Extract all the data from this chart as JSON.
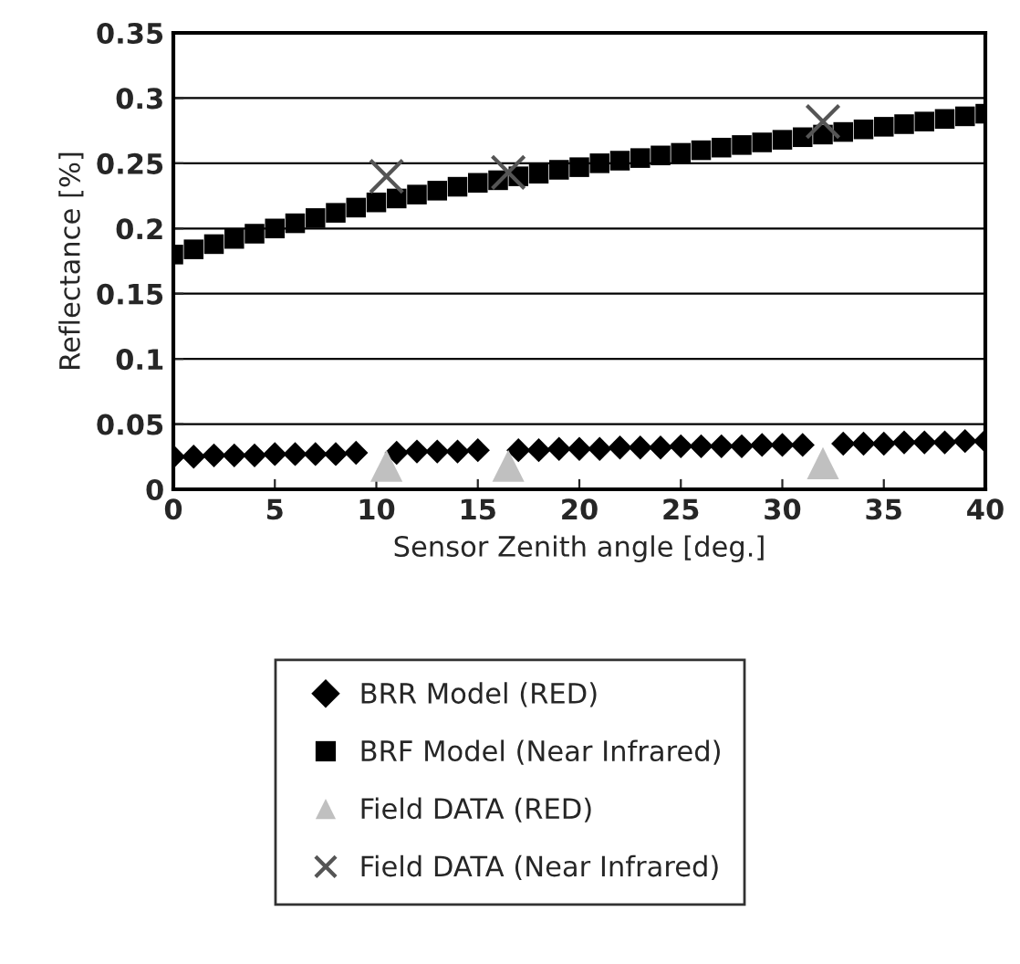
{
  "chart_data": {
    "type": "scatter",
    "xlabel": "Sensor Zenith angle [deg.]",
    "ylabel": "Reflectance [%]",
    "xlim": [
      0,
      40
    ],
    "xticks": [
      0,
      5,
      10,
      15,
      20,
      25,
      30,
      35,
      40
    ],
    "ylim": [
      0,
      0.35
    ],
    "yticks": [
      0,
      0.05,
      0.1,
      0.15,
      0.2,
      0.25,
      0.3,
      0.35
    ],
    "grid": "y",
    "legend": "bottom",
    "x": [
      0,
      1,
      2,
      3,
      4,
      5,
      6,
      7,
      8,
      9,
      10,
      11,
      12,
      13,
      14,
      15,
      16,
      17,
      18,
      19,
      20,
      21,
      22,
      23,
      24,
      25,
      26,
      27,
      28,
      29,
      30,
      31,
      32,
      33,
      34,
      35,
      36,
      37,
      38,
      39,
      40
    ],
    "series": [
      {
        "name": "BRR Model (RED)",
        "color": "#000000",
        "marker": "diamond",
        "values": [
          0.025,
          0.025,
          0.026,
          0.026,
          0.026,
          0.027,
          0.027,
          0.027,
          0.027,
          0.028,
          null,
          0.028,
          0.029,
          0.029,
          0.029,
          0.03,
          null,
          0.03,
          0.03,
          0.031,
          0.031,
          0.031,
          0.032,
          0.032,
          0.032,
          0.033,
          0.033,
          0.033,
          0.033,
          0.034,
          0.034,
          0.034,
          null,
          0.035,
          0.035,
          0.035,
          0.036,
          0.036,
          0.036,
          0.037,
          0.037
        ]
      },
      {
        "name": "BRF Model (Near Infrared)",
        "color": "#000000",
        "marker": "square",
        "values": [
          0.18,
          0.184,
          0.188,
          0.192,
          0.196,
          0.2,
          0.204,
          0.208,
          0.212,
          0.216,
          0.22,
          0.223,
          0.226,
          0.229,
          0.232,
          0.235,
          0.237,
          0.24,
          0.242,
          0.245,
          0.247,
          0.25,
          0.252,
          0.254,
          0.256,
          0.258,
          0.26,
          0.262,
          0.264,
          0.266,
          0.268,
          0.27,
          0.272,
          0.274,
          0.276,
          0.278,
          0.28,
          0.282,
          0.284,
          0.286,
          0.288
        ]
      },
      {
        "name": "Field DATA (RED)",
        "color": "#c0c0c0",
        "marker": "triangle",
        "x": [
          10.5,
          16.5,
          32
        ],
        "values": [
          0.018,
          0.018,
          0.02
        ]
      },
      {
        "name": "Field DATA (Near Infrared)",
        "color": "#555555",
        "marker": "cross",
        "x": [
          10.5,
          16.5,
          32
        ],
        "values": [
          0.24,
          0.243,
          0.282
        ]
      }
    ]
  }
}
